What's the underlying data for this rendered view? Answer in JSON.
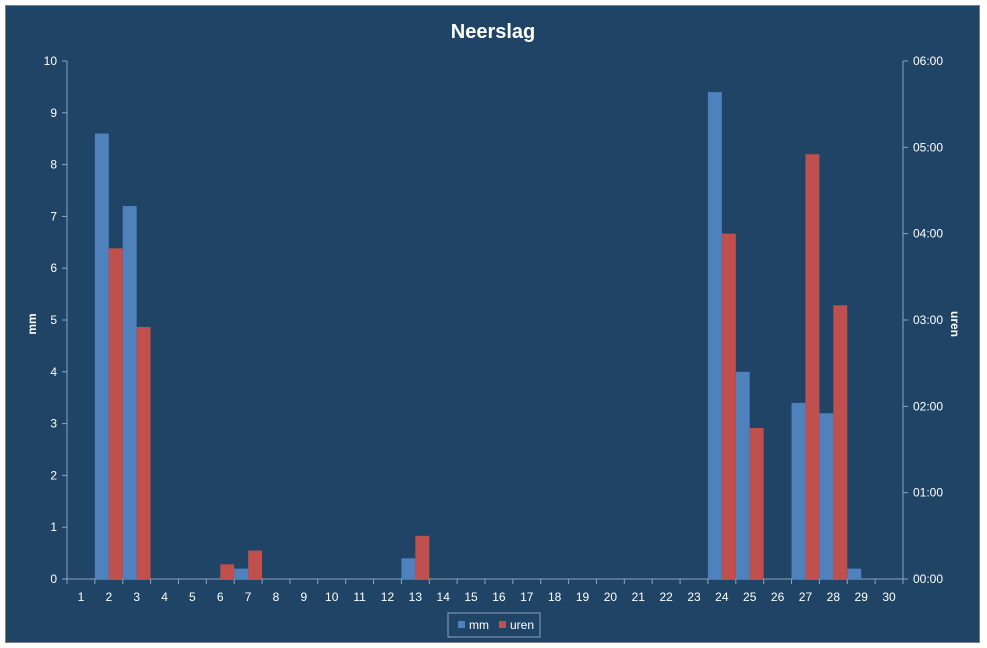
{
  "chart_data": {
    "type": "bar",
    "title": "Neerslag",
    "xlabel": "",
    "ylabel": "mm",
    "y2label": "uren",
    "categories": [
      "1",
      "2",
      "3",
      "4",
      "5",
      "6",
      "7",
      "8",
      "9",
      "10",
      "11",
      "12",
      "13",
      "14",
      "15",
      "16",
      "17",
      "18",
      "19",
      "20",
      "21",
      "22",
      "23",
      "24",
      "25",
      "26",
      "27",
      "28",
      "29",
      "30"
    ],
    "ylim": [
      0,
      10
    ],
    "yticks": [
      "0",
      "1",
      "2",
      "3",
      "4",
      "5",
      "6",
      "7",
      "8",
      "9",
      "10"
    ],
    "y2lim_hours": [
      0,
      6
    ],
    "y2ticks": [
      "00:00",
      "01:00",
      "02:00",
      "03:00",
      "04:00",
      "05:00",
      "06:00"
    ],
    "series": [
      {
        "name": "mm",
        "axis": "left",
        "color": "#4f81bd",
        "values": [
          0,
          8.6,
          7.2,
          0,
          0,
          0,
          0.2,
          0,
          0,
          0,
          0,
          0,
          0.4,
          0,
          0,
          0,
          0,
          0,
          0,
          0,
          0,
          0,
          0,
          9.4,
          4.0,
          0,
          3.4,
          3.2,
          0.2,
          0
        ]
      },
      {
        "name": "uren",
        "axis": "right",
        "unit": "hours",
        "color": "#c0504d",
        "values": [
          0,
          3.83,
          2.92,
          0,
          0,
          0.17,
          0.33,
          0,
          0,
          0,
          0,
          0,
          0.5,
          0,
          0,
          0,
          0,
          0,
          0,
          0,
          0,
          0,
          0,
          4.0,
          1.75,
          0,
          4.92,
          3.17,
          0,
          0
        ]
      }
    ],
    "legend_position": "bottom",
    "grid": false
  }
}
